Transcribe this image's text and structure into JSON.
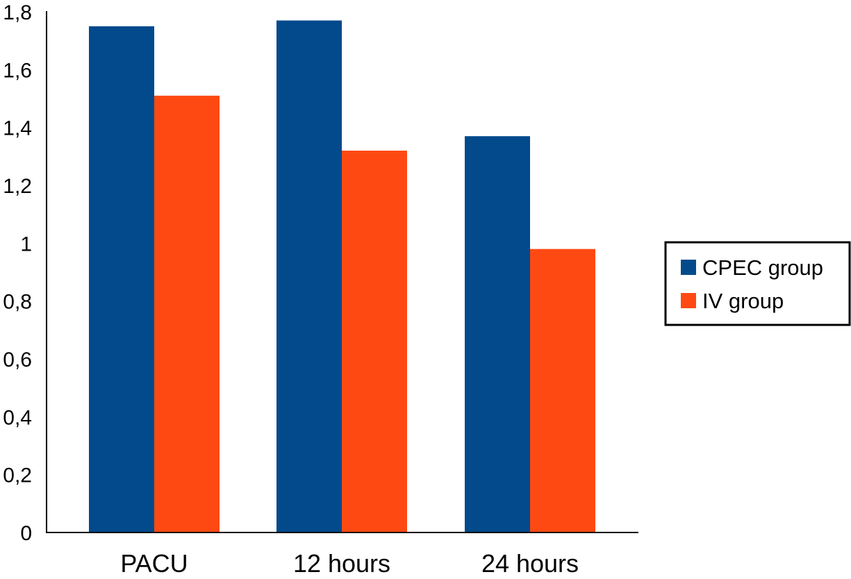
{
  "chart_data": {
    "type": "bar",
    "categories": [
      "PACU",
      "12 hours",
      "24 hours"
    ],
    "series": [
      {
        "name": "CPEC group",
        "color": "#024a8c",
        "values": [
          1.75,
          1.77,
          1.37
        ]
      },
      {
        "name": "IV group",
        "color": "#fe4a12",
        "values": [
          1.51,
          1.32,
          0.98
        ]
      }
    ],
    "ylim": [
      0,
      1.8
    ],
    "yticks": [
      "0",
      "0,2",
      "0,4",
      "0,6",
      "0,8",
      "1",
      "1,2",
      "1,4",
      "1,6",
      "1,8"
    ],
    "legend_position": "right",
    "grid": false,
    "title": "",
    "xlabel": "",
    "ylabel": ""
  }
}
